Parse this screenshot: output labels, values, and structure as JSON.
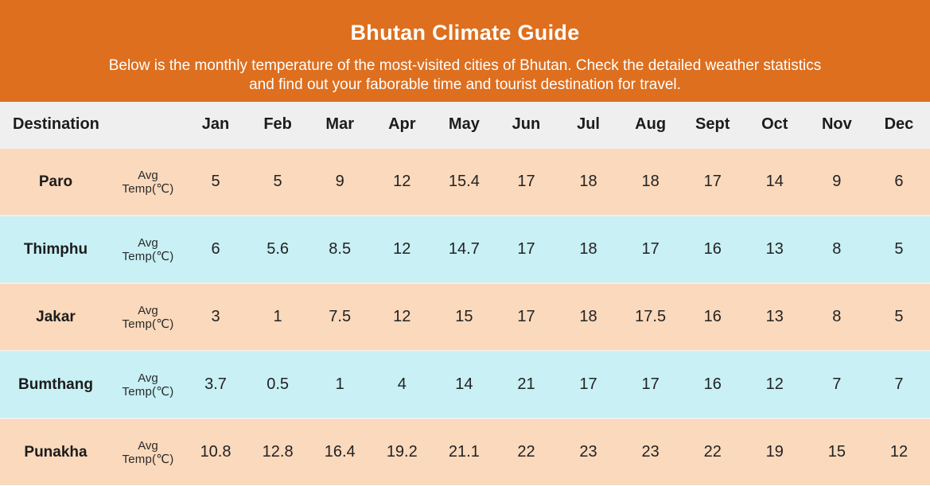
{
  "header": {
    "title": "Bhutan Climate Guide",
    "subtitle_line1": "Below is the monthly temperature of the most-visited cities of Bhutan. Check the detailed weather statistics",
    "subtitle_line2": "and find out your faborable time and tourist destination for travel."
  },
  "table": {
    "destination_header": "Destination",
    "metric_label_line1": "Avg",
    "metric_label_line2": "Temp(℃)",
    "months": [
      "Jan",
      "Feb",
      "Mar",
      "Apr",
      "May",
      "Jun",
      "Jul",
      "Aug",
      "Sept",
      "Oct",
      "Nov",
      "Dec"
    ]
  },
  "colors": {
    "hero_bg": "#dd6f1f",
    "hero_text": "#ffffff",
    "table_header_bg": "#efefef",
    "row_peach": "#fbd9bc",
    "row_blue": "#c8f0f5",
    "text_dark": "#1c1c1c"
  },
  "chart_data": {
    "type": "table",
    "title": "Bhutan Climate Guide",
    "metric": "Avg Temp(℃)",
    "unit": "°C",
    "categories": [
      "Jan",
      "Feb",
      "Mar",
      "Apr",
      "May",
      "Jun",
      "Jul",
      "Aug",
      "Sept",
      "Oct",
      "Nov",
      "Dec"
    ],
    "series": [
      {
        "name": "Paro",
        "values": [
          5,
          5,
          9,
          12,
          15.4,
          17,
          18,
          18,
          17,
          14,
          9,
          6
        ]
      },
      {
        "name": "Thimphu",
        "values": [
          6,
          5.6,
          8.5,
          12,
          14.7,
          17,
          18,
          17,
          16,
          13,
          8,
          5
        ]
      },
      {
        "name": "Jakar",
        "values": [
          3,
          1,
          7.5,
          12,
          15,
          17,
          18,
          17.5,
          16,
          13,
          8,
          5
        ]
      },
      {
        "name": "Bumthang",
        "values": [
          3.7,
          0.5,
          1,
          4,
          14,
          21,
          17,
          17,
          16,
          12,
          7,
          7
        ]
      },
      {
        "name": "Punakha",
        "values": [
          10.8,
          12.8,
          16.4,
          19.2,
          21.1,
          22,
          23,
          23,
          22,
          19,
          15,
          12
        ]
      }
    ]
  }
}
